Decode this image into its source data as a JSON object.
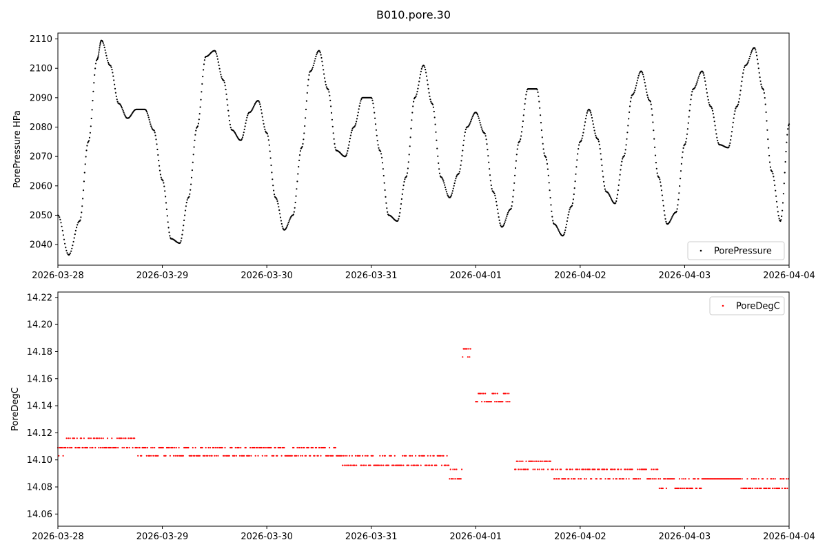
{
  "figure": {
    "title": "B010.pore.30"
  },
  "chart_data": [
    {
      "type": "scatter",
      "ylabel": "PorePressure HPa",
      "xlabel": "",
      "x_ticks": [
        "2026-03-28",
        "2026-03-29",
        "2026-03-30",
        "2026-03-31",
        "2026-04-01",
        "2026-04-02",
        "2026-04-03",
        "2026-04-04"
      ],
      "xlim": [
        "2026-03-28",
        "2026-04-04"
      ],
      "ylim": [
        2033,
        2112
      ],
      "y_ticks": [
        2040,
        2050,
        2060,
        2070,
        2080,
        2090,
        2100,
        2110
      ],
      "legend": "lower right",
      "series": [
        {
          "name": "PorePressure",
          "color": "#000000",
          "x": [
            "2026-03-28T00:00",
            "2026-03-28T02:30",
            "2026-03-28T05:00",
            "2026-03-28T07:00",
            "2026-03-28T09:00",
            "2026-03-28T10:00",
            "2026-03-28T12:00",
            "2026-03-28T14:00",
            "2026-03-28T16:00",
            "2026-03-28T18:00",
            "2026-03-28T20:00",
            "2026-03-28T22:00",
            "2026-03-29T00:00",
            "2026-03-29T02:00",
            "2026-03-29T04:00",
            "2026-03-29T06:00",
            "2026-03-29T08:00",
            "2026-03-29T10:00",
            "2026-03-29T12:00",
            "2026-03-29T14:00",
            "2026-03-29T16:00",
            "2026-03-29T18:00",
            "2026-03-29T20:00",
            "2026-03-29T22:00",
            "2026-03-30T00:00",
            "2026-03-30T02:00",
            "2026-03-30T04:00",
            "2026-03-30T06:00",
            "2026-03-30T08:00",
            "2026-03-30T10:00",
            "2026-03-30T12:00",
            "2026-03-30T14:00",
            "2026-03-30T16:00",
            "2026-03-30T18:00",
            "2026-03-30T20:00",
            "2026-03-30T22:00",
            "2026-03-31T00:00",
            "2026-03-31T02:00",
            "2026-03-31T04:00",
            "2026-03-31T06:00",
            "2026-03-31T08:00",
            "2026-03-31T10:00",
            "2026-03-31T12:00",
            "2026-03-31T14:00",
            "2026-03-31T16:00",
            "2026-03-31T18:00",
            "2026-03-31T20:00",
            "2026-03-31T22:00",
            "2026-04-01T00:00",
            "2026-04-01T02:00",
            "2026-04-01T04:00",
            "2026-04-01T06:00",
            "2026-04-01T08:00",
            "2026-04-01T10:00",
            "2026-04-01T12:00",
            "2026-04-01T14:00",
            "2026-04-01T16:00",
            "2026-04-01T18:00",
            "2026-04-01T20:00",
            "2026-04-01T22:00",
            "2026-04-02T00:00",
            "2026-04-02T02:00",
            "2026-04-02T04:00",
            "2026-04-02T06:00",
            "2026-04-02T08:00",
            "2026-04-02T10:00",
            "2026-04-02T12:00",
            "2026-04-02T14:00",
            "2026-04-02T16:00",
            "2026-04-02T18:00",
            "2026-04-02T20:00",
            "2026-04-02T22:00",
            "2026-04-03T00:00",
            "2026-04-03T02:00",
            "2026-04-03T04:00",
            "2026-04-03T06:00",
            "2026-04-03T08:00",
            "2026-04-03T10:00",
            "2026-04-03T12:00",
            "2026-04-03T14:00",
            "2026-04-03T16:00",
            "2026-04-03T18:00",
            "2026-04-03T20:00",
            "2026-04-03T22:00",
            "2026-04-04T00:00"
          ],
          "y": [
            2050,
            2036.5,
            2048,
            2075,
            2103,
            2109.5,
            2101,
            2088,
            2083,
            2086,
            2086,
            2079,
            2062,
            2042,
            2040.5,
            2056,
            2080,
            2104,
            2106,
            2096,
            2079,
            2075.5,
            2085,
            2089,
            2078,
            2056,
            2045,
            2050,
            2073,
            2099,
            2106,
            2093,
            2072,
            2070,
            2080,
            2090,
            2090,
            2072,
            2050,
            2048,
            2063,
            2090,
            2101,
            2088,
            2063,
            2056,
            2064,
            2080,
            2085,
            2078,
            2058,
            2046,
            2052,
            2075,
            2093,
            2093,
            2070,
            2047,
            2043,
            2053,
            2075,
            2086,
            2076,
            2058,
            2054,
            2070,
            2091,
            2099,
            2089,
            2063,
            2047,
            2051,
            2074,
            2093,
            2099,
            2087,
            2074,
            2073,
            2087,
            2101,
            2107,
            2093,
            2065,
            2048,
            2081
          ]
        }
      ]
    },
    {
      "type": "scatter",
      "ylabel": "PoreDegC",
      "xlabel": "",
      "x_ticks": [
        "2026-03-28",
        "2026-03-29",
        "2026-03-30",
        "2026-03-31",
        "2026-04-01",
        "2026-04-02",
        "2026-04-03",
        "2026-04-04"
      ],
      "xlim": [
        "2026-03-28",
        "2026-04-04"
      ],
      "ylim": [
        14.051,
        14.224
      ],
      "y_ticks": [
        "14.06",
        "14.08",
        "14.10",
        "14.12",
        "14.14",
        "14.16",
        "14.18",
        "14.20",
        "14.22"
      ],
      "legend": "upper right",
      "series": [
        {
          "name": "PoreDegC",
          "color": "#ff0000",
          "segments": [
            {
              "from": "2026-03-28T00:00",
              "to": "2026-03-28T02:00",
              "levels": [
                14.103,
                14.109
              ]
            },
            {
              "from": "2026-03-28T02:00",
              "to": "2026-03-28T18:00",
              "levels": [
                14.109,
                14.116
              ]
            },
            {
              "from": "2026-03-28T18:00",
              "to": "2026-03-29T12:00",
              "levels": [
                14.103,
                14.109
              ]
            },
            {
              "from": "2026-03-29T12:00",
              "to": "2026-03-30T00:00",
              "levels": [
                14.103,
                14.109
              ]
            },
            {
              "from": "2026-03-30T00:00",
              "to": "2026-03-30T16:00",
              "levels": [
                14.103,
                14.109
              ]
            },
            {
              "from": "2026-03-30T16:00",
              "to": "2026-03-31T00:00",
              "levels": [
                14.096,
                14.103
              ]
            },
            {
              "from": "2026-03-31T00:00",
              "to": "2026-03-31T18:00",
              "levels": [
                14.096,
                14.103
              ]
            },
            {
              "from": "2026-03-31T18:00",
              "to": "2026-03-31T21:00",
              "levels": [
                14.086,
                14.093
              ]
            },
            {
              "from": "2026-03-31T21:00",
              "to": "2026-03-31T23:00",
              "levels": [
                14.176,
                14.182
              ]
            },
            {
              "from": "2026-04-01T00:00",
              "to": "2026-04-01T08:00",
              "levels": [
                14.143,
                14.149
              ]
            },
            {
              "from": "2026-04-01T09:00",
              "to": "2026-04-01T18:00",
              "levels": [
                14.093,
                14.099
              ]
            },
            {
              "from": "2026-04-01T18:00",
              "to": "2026-04-02T18:00",
              "levels": [
                14.086,
                14.093
              ]
            },
            {
              "from": "2026-04-02T18:00",
              "to": "2026-04-03T04:00",
              "levels": [
                14.079,
                14.086
              ]
            },
            {
              "from": "2026-04-03T04:00",
              "to": "2026-04-03T12:00",
              "levels": [
                14.086
              ]
            },
            {
              "from": "2026-04-03T12:00",
              "to": "2026-04-04T00:00",
              "levels": [
                14.079,
                14.086
              ]
            }
          ]
        }
      ]
    }
  ]
}
